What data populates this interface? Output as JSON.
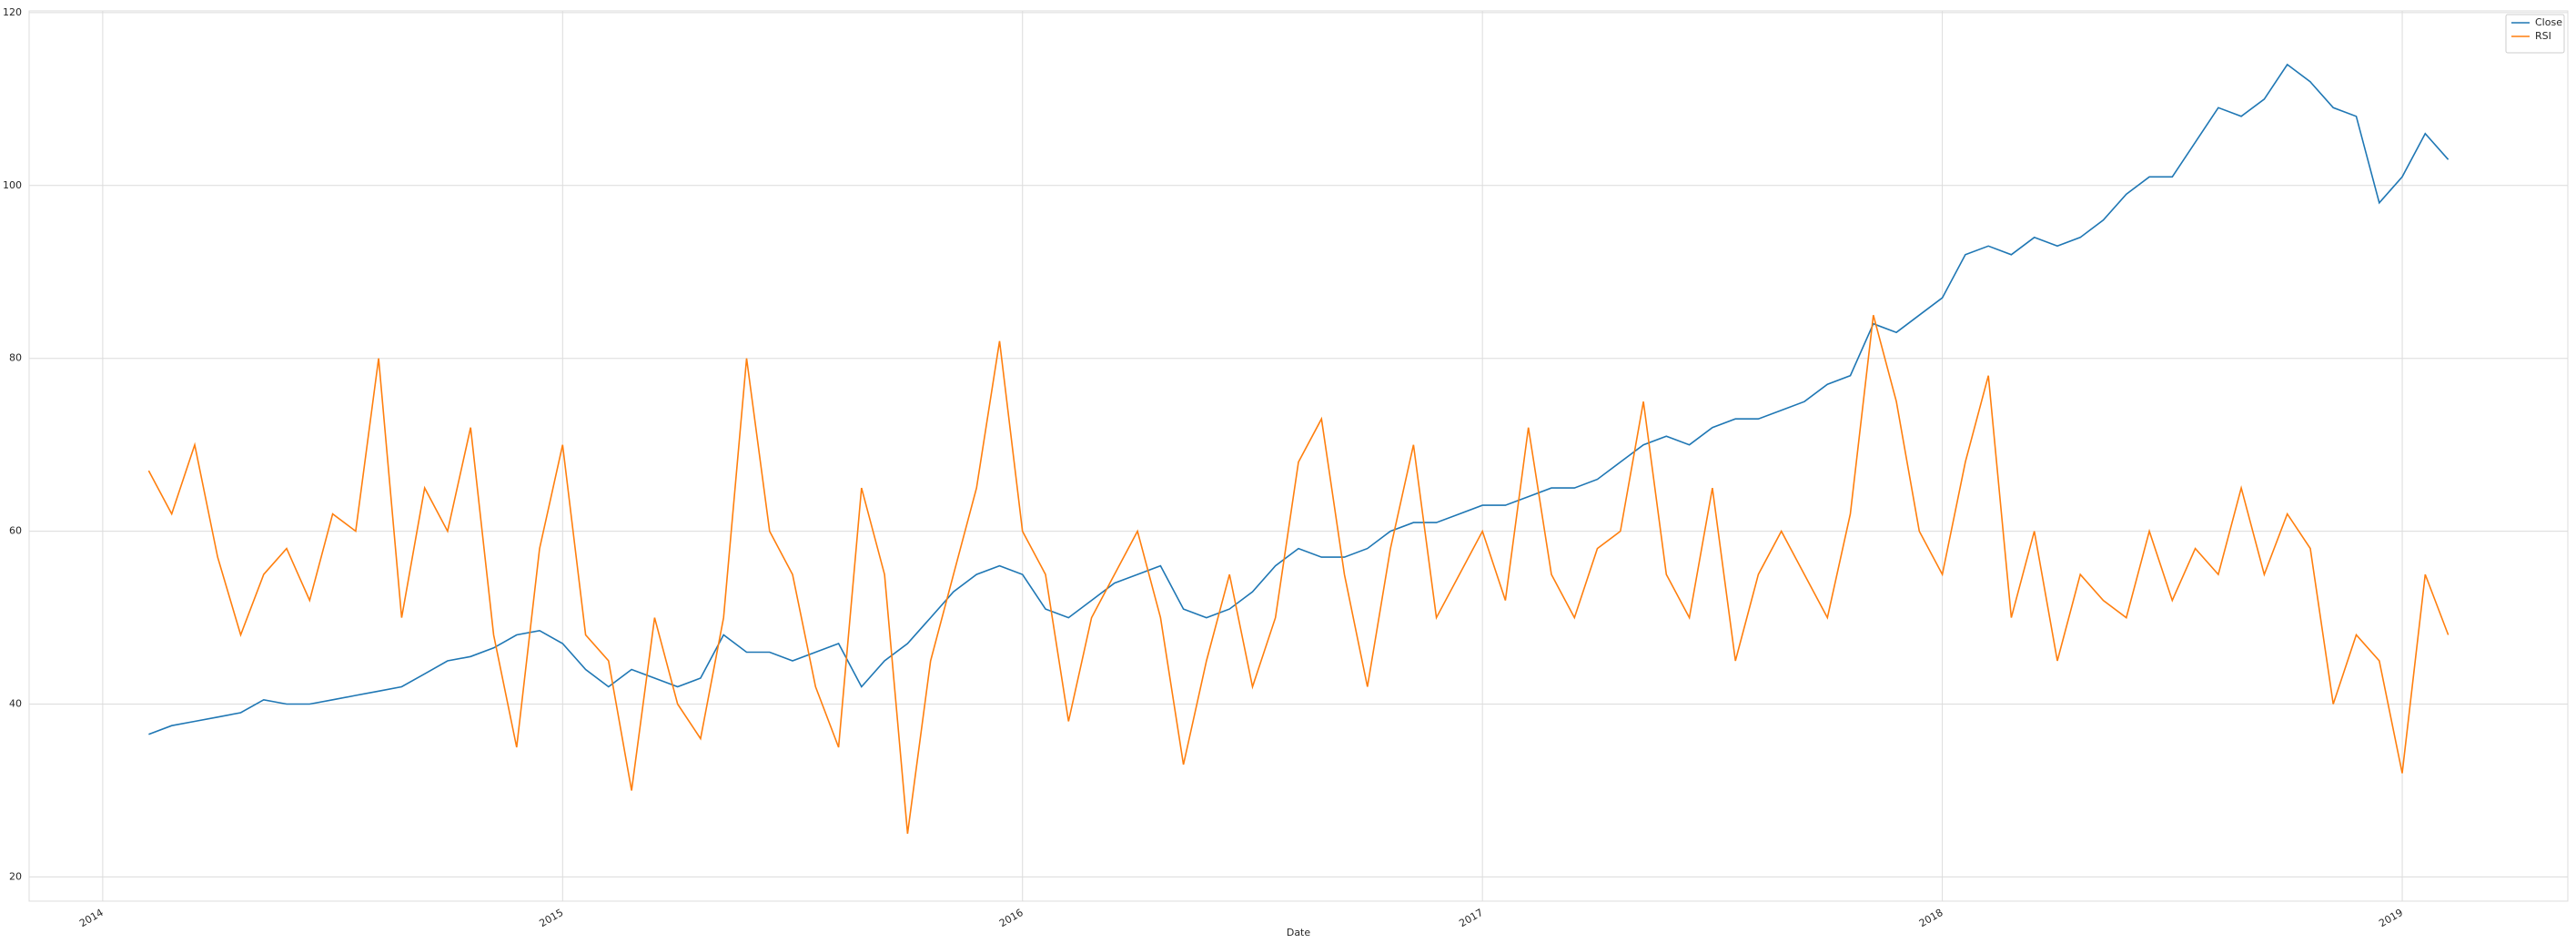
{
  "chart_data": {
    "type": "line",
    "xlabel": "Date",
    "x": [
      2014.1,
      2014.15,
      2014.2,
      2014.25,
      2014.3,
      2014.35,
      2014.4,
      2014.45,
      2014.5,
      2014.55,
      2014.6,
      2014.65,
      2014.7,
      2014.75,
      2014.8,
      2014.85,
      2014.9,
      2014.95,
      2015.0,
      2015.05,
      2015.1,
      2015.15,
      2015.2,
      2015.25,
      2015.3,
      2015.35,
      2015.4,
      2015.45,
      2015.5,
      2015.55,
      2015.6,
      2015.65,
      2015.7,
      2015.75,
      2015.8,
      2015.85,
      2015.9,
      2015.95,
      2016.0,
      2016.05,
      2016.1,
      2016.15,
      2016.2,
      2016.25,
      2016.3,
      2016.35,
      2016.4,
      2016.45,
      2016.5,
      2016.55,
      2016.6,
      2016.65,
      2016.7,
      2016.75,
      2016.8,
      2016.85,
      2016.9,
      2016.95,
      2017.0,
      2017.05,
      2017.1,
      2017.15,
      2017.2,
      2017.25,
      2017.3,
      2017.35,
      2017.4,
      2017.45,
      2017.5,
      2017.55,
      2017.6,
      2017.65,
      2017.7,
      2017.75,
      2017.8,
      2017.85,
      2017.9,
      2017.95,
      2018.0,
      2018.05,
      2018.1,
      2018.15,
      2018.2,
      2018.25,
      2018.3,
      2018.35,
      2018.4,
      2018.45,
      2018.5,
      2018.55,
      2018.6,
      2018.65,
      2018.7,
      2018.75,
      2018.8,
      2018.85,
      2018.9,
      2018.95,
      2019.0,
      2019.05,
      2019.1
    ],
    "series": [
      {
        "name": "Close",
        "color": "#1f77b4",
        "values": [
          36.5,
          37.5,
          38,
          38.5,
          39,
          40.5,
          40,
          40,
          40.5,
          41,
          41.5,
          42,
          43.5,
          45,
          45.5,
          46.5,
          48,
          48.5,
          47,
          44,
          42,
          44,
          43,
          42,
          43,
          48,
          46,
          46,
          45,
          46,
          47,
          42,
          45,
          47,
          50,
          53,
          55,
          56,
          55,
          51,
          50,
          52,
          54,
          55,
          56,
          51,
          50,
          51,
          53,
          56,
          58,
          57,
          57,
          58,
          60,
          61,
          61,
          62,
          63,
          63,
          64,
          65,
          65,
          66,
          68,
          70,
          71,
          70,
          72,
          73,
          73,
          74,
          75,
          77,
          78,
          84,
          83,
          85,
          87,
          92,
          93,
          92,
          94,
          93,
          94,
          96,
          99,
          101,
          101,
          105,
          109,
          108,
          110,
          114,
          112,
          109,
          108,
          98,
          101,
          106,
          103
        ]
      },
      {
        "name": "RSI",
        "color": "#ff7f0e",
        "values": [
          67,
          62,
          70,
          57,
          48,
          55,
          58,
          52,
          62,
          60,
          80,
          50,
          65,
          60,
          72,
          48,
          35,
          58,
          70,
          48,
          45,
          30,
          50,
          40,
          36,
          50,
          80,
          60,
          55,
          42,
          35,
          65,
          55,
          25,
          45,
          55,
          65,
          82,
          60,
          55,
          38,
          50,
          55,
          60,
          50,
          33,
          45,
          55,
          42,
          50,
          68,
          73,
          55,
          42,
          58,
          70,
          50,
          55,
          60,
          52,
          72,
          55,
          50,
          58,
          60,
          75,
          55,
          50,
          65,
          45,
          55,
          60,
          55,
          50,
          62,
          85,
          75,
          60,
          55,
          68,
          78,
          50,
          60,
          45,
          55,
          52,
          50,
          60,
          52,
          58,
          55,
          65,
          55,
          62,
          58,
          40,
          48,
          45,
          32,
          55,
          48
        ]
      }
    ],
    "xlim": [
      2013.84,
      2019.36
    ],
    "xticks": [
      2014,
      2015,
      2016,
      2017,
      2018,
      2019
    ],
    "ylim": [
      17.2,
      120.2
    ],
    "yticks": [
      20,
      40,
      60,
      80,
      100,
      120
    ],
    "grid": true,
    "legend": "upper-right"
  }
}
